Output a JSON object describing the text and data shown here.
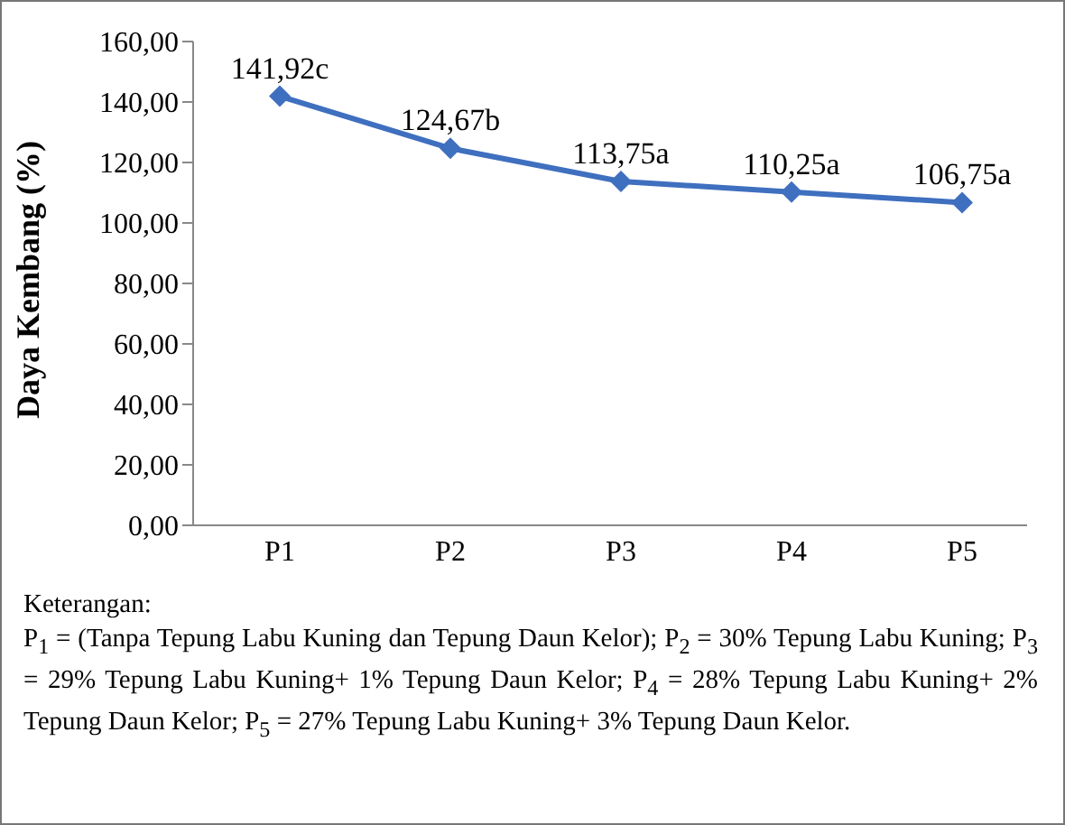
{
  "chart_data": {
    "type": "line",
    "categories": [
      "P1",
      "P2",
      "P3",
      "P4",
      "P5"
    ],
    "series": [
      {
        "color": "#3f6fbf",
        "values": [
          141.92,
          124.67,
          113.75,
          110.25,
          106.75
        ],
        "value_labels": [
          "141,92c",
          "124,67b",
          "113,75a",
          "110,25a",
          "106,75a"
        ]
      }
    ],
    "ylabel": "Daya Kembang (%)",
    "ylim": [
      0,
      160
    ],
    "yticks": [
      {
        "value": 0,
        "label": "0,00"
      },
      {
        "value": 20,
        "label": "20,00"
      },
      {
        "value": 40,
        "label": "40,00"
      },
      {
        "value": 60,
        "label": "60,00"
      },
      {
        "value": 80,
        "label": "80,00"
      },
      {
        "value": 100,
        "label": "100,00"
      },
      {
        "value": 120,
        "label": "120,00"
      },
      {
        "value": 140,
        "label": "140,00"
      },
      {
        "value": 160,
        "label": "160,00"
      }
    ],
    "grid": false,
    "legend": false,
    "marker": "diamond",
    "line_style": "solid",
    "annotations": [
      "Keterangan:",
      "P$_{1}$ = (Tanpa Tepung Labu Kuning dan Tepung Daun Kelor); P$_{2}$ = 30% Tepung Labu Kuning; P$_{3}$ = 29% Tepung Labu Kuning+ 1% Tepung Daun Kelor; P$_{4}$ = 28% Tepung Labu Kuning+ 2% Tepung Daun Kelor; P$_{5}$ = 27% Tepung Labu Kuning+ 3% Tepung Daun Kelor."
    ]
  }
}
